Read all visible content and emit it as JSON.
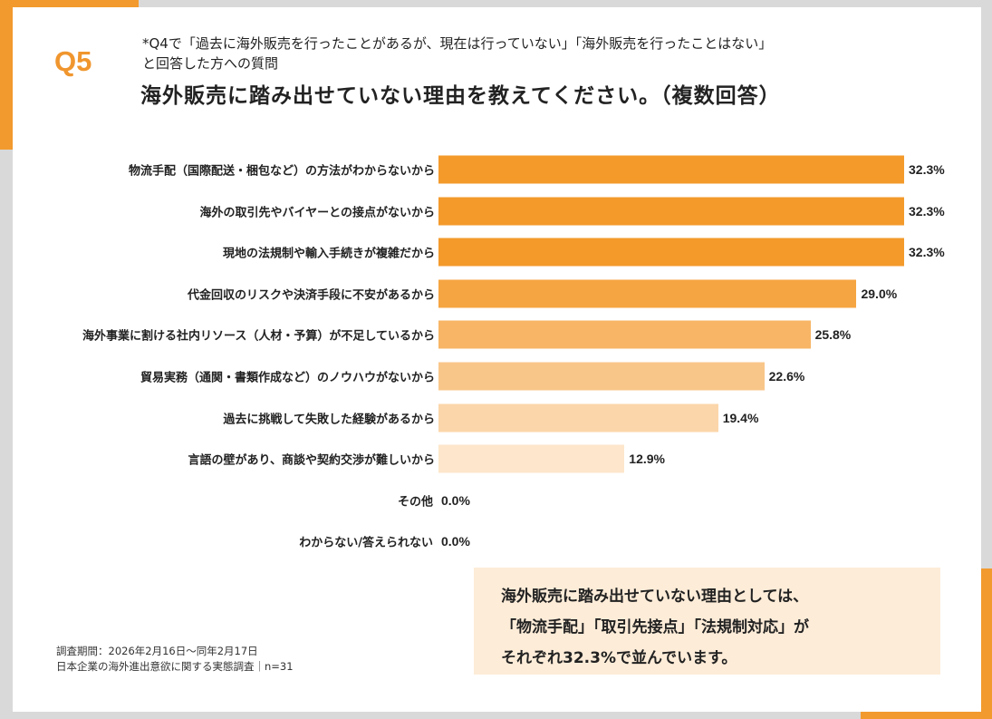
{
  "header": {
    "question_no": "Q5",
    "note_line1": "*Q4で「過去に海外販売を行ったことがあるが、現在は行っていない」「海外販売を行ったことはない」",
    "note_line2": "と回答した方への質問",
    "title": "海外販売に踏み出せていない理由を教えてください。（複数回答）"
  },
  "colors": {
    "accent": "#f29a2e",
    "callout_bg": "#fdecd8",
    "background": "#d9d9d9"
  },
  "chart_data": {
    "type": "bar",
    "orientation": "horizontal",
    "categories": [
      "物流手配（国際配送・梱包など）の方法がわからないから",
      "海外の取引先やバイヤーとの接点がないから",
      "現地の法規制や輸入手続きが複雑だから",
      "代金回収のリスクや決済手段に不安があるから",
      "海外事業に割ける社内リソース（人材・予算）が不足しているから",
      "貿易実務（通関・書類作成など）のノウハウがないから",
      "過去に挑戦して失敗した経験があるから",
      "言語の壁があり、商談や契約交渉が難しいから",
      "その他",
      "わからない/答えられない"
    ],
    "values": [
      32.3,
      32.3,
      32.3,
      29.0,
      25.8,
      22.6,
      19.4,
      12.9,
      0.0,
      0.0
    ],
    "value_labels": [
      "32.3%",
      "32.3%",
      "32.3%",
      "29.0%",
      "25.8%",
      "22.6%",
      "19.4%",
      "12.9%",
      "0.0%",
      "0.0%"
    ],
    "bar_colors": [
      "#f39a2b",
      "#f39a2b",
      "#f39a2b",
      "#f5a541",
      "#f7b565",
      "#f9c68a",
      "#fbd6aa",
      "#fde6cb",
      "#fde6cb",
      "#fde6cb"
    ],
    "grid": false,
    "legend": "none"
  },
  "footer": {
    "period": "調査期間：2026年2月16日～同年2月17日",
    "survey": "日本企業の海外進出意欲に関する実態調査｜n=31"
  },
  "callout": {
    "line1": "海外販売に踏み出せていない理由としては、",
    "line2": "「物流手配」「取引先接点」「法規制対応」が",
    "line3": "それぞれ32.3%で並んでいます。"
  }
}
